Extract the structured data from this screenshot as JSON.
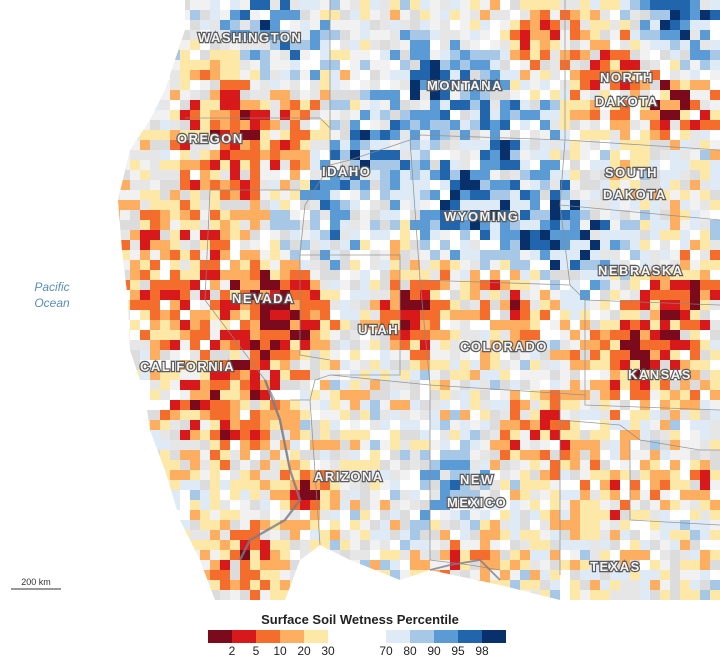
{
  "map": {
    "states": [
      "WASHINGTON",
      "OREGON",
      "IDAHO",
      "MONTANA",
      "NORTH",
      "DAKOTA",
      "SOUTH",
      "DAKOTA",
      "WYOMING",
      "NEBRASKA",
      "NEVADA",
      "UTAH",
      "COLORADO",
      "KANSAS",
      "CALIFORNIA",
      "ARIZONA",
      "NEW",
      "MEXICO",
      "TEXAS"
    ],
    "ocean": [
      "Pacific",
      "Ocean"
    ],
    "scale_label": "200 km"
  },
  "legend": {
    "title": "Surface Soil Wetness Percentile",
    "dry_colors": [
      "#7a0a1c",
      "#d7191c",
      "#f46d2d",
      "#fdae61",
      "#fee8a8"
    ],
    "wet_colors": [
      "#deebf7",
      "#a6c8e6",
      "#5b9bd5",
      "#2166ac",
      "#08306b"
    ],
    "dry_ticks": [
      "2",
      "5",
      "10",
      "20",
      "30"
    ],
    "wet_ticks": [
      "70",
      "80",
      "90",
      "95",
      "98"
    ]
  }
}
